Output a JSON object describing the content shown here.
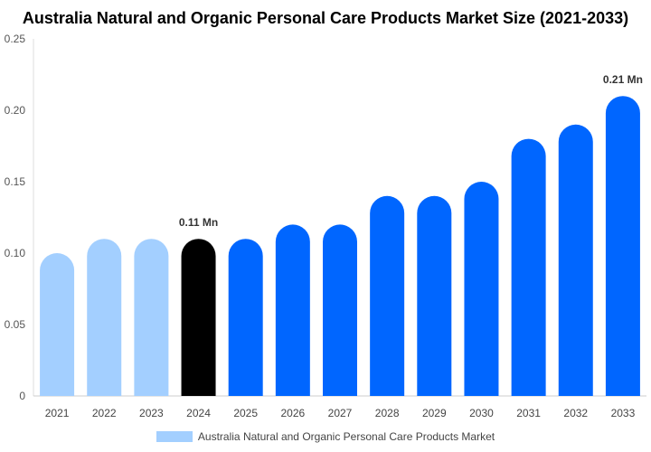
{
  "chart_data": {
    "type": "bar",
    "title": "Australia Natural and Organic Personal Care Products Market Size (2021-2033)",
    "categories": [
      "2021",
      "2022",
      "2023",
      "2024",
      "2025",
      "2026",
      "2027",
      "2028",
      "2029",
      "2030",
      "2031",
      "2032",
      "2033"
    ],
    "series": [
      {
        "name": "Australia Natural and Organic Personal Care Products Market",
        "values": [
          0.1,
          0.11,
          0.11,
          0.11,
          0.11,
          0.12,
          0.12,
          0.14,
          0.14,
          0.15,
          0.18,
          0.19,
          0.21
        ]
      }
    ],
    "ylim": [
      0,
      0.25
    ],
    "yticks": [
      "0",
      "0.05",
      "0.10",
      "0.15",
      "0.20",
      "0.25"
    ],
    "annotations": [
      {
        "category": "2024",
        "text": "0.11 Mn"
      },
      {
        "category": "2033",
        "text": "0.21 Mn"
      }
    ],
    "colors": {
      "historical": "#a3cfff",
      "base_year": "#000000",
      "forecast": "#0066ff"
    },
    "bar_color_groups": [
      "historical",
      "historical",
      "historical",
      "base_year",
      "forecast",
      "forecast",
      "forecast",
      "forecast",
      "forecast",
      "forecast",
      "forecast",
      "forecast",
      "forecast"
    ],
    "legend_position": "bottom",
    "grid": false
  }
}
